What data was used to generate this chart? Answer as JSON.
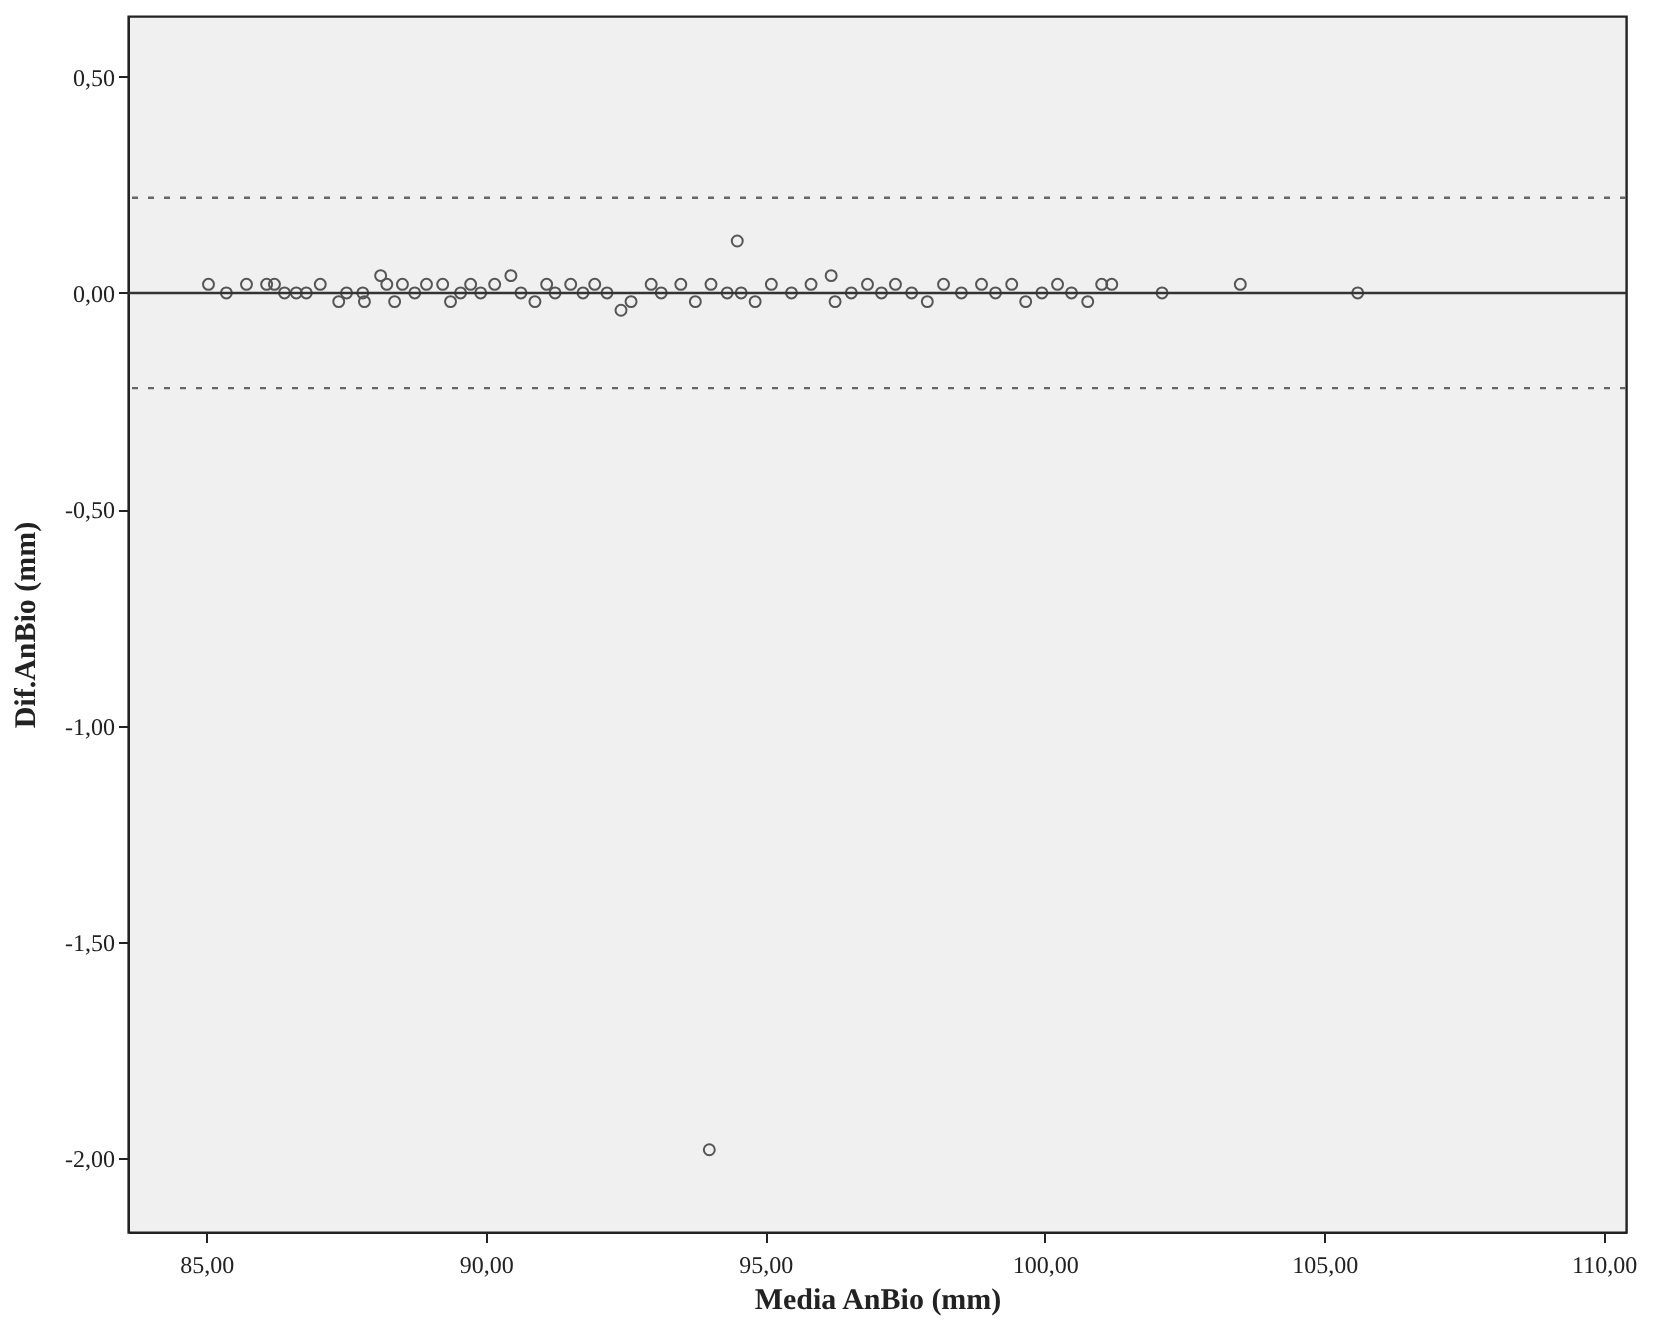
{
  "chart_data": {
    "type": "scatter",
    "xlabel": "Media AnBio (mm)",
    "ylabel": "Dif.AnBio (mm)",
    "x": [
      85.04,
      85.36,
      85.72,
      86.08,
      86.22,
      86.4,
      86.61,
      86.79,
      87.04,
      87.37,
      87.51,
      87.8,
      87.83,
      88.12,
      88.23,
      88.37,
      88.51,
      88.73,
      88.94,
      89.23,
      89.37,
      89.55,
      89.73,
      89.91,
      90.16,
      90.45,
      90.63,
      90.88,
      91.09,
      91.24,
      91.52,
      91.74,
      91.95,
      92.17,
      92.42,
      92.6,
      92.96,
      93.14,
      93.49,
      93.75,
      94.03,
      94.32,
      94.57,
      94.82,
      95.11,
      95.47,
      95.82,
      96.18,
      96.25,
      96.54,
      96.83,
      97.08,
      97.33,
      97.62,
      97.9,
      98.19,
      98.51,
      98.87,
      99.12,
      99.41,
      99.66,
      99.95,
      100.23,
      100.48,
      100.77,
      101.02,
      101.2,
      102.1,
      103.5,
      105.6,
      94.5,
      94.0
    ],
    "values": [
      0.02,
      0,
      0.02,
      0.02,
      0.02,
      0,
      0,
      0,
      0.02,
      -0.02,
      0,
      0,
      -0.02,
      0.04,
      0.02,
      -0.02,
      0.02,
      0,
      0.02,
      0.02,
      -0.02,
      0,
      0.02,
      0,
      0.02,
      0.04,
      0,
      -0.02,
      0.02,
      0,
      0.02,
      0,
      0.02,
      0,
      -0.04,
      -0.02,
      0.02,
      0,
      0.02,
      -0.02,
      0.02,
      0,
      0,
      -0.02,
      0.02,
      0,
      0.02,
      0.04,
      -0.02,
      0,
      0.02,
      0,
      0.02,
      0,
      -0.02,
      0.02,
      0,
      0.02,
      0,
      0.02,
      -0.02,
      0,
      0.02,
      0,
      -0.02,
      0.02,
      0.02,
      0,
      0.02,
      0,
      0.12,
      -1.98
    ],
    "color": "#555555",
    "marker": "circle",
    "grid": false,
    "xlim": [
      83.6,
      110.4
    ],
    "ylim": [
      -2.17,
      0.64
    ],
    "xticks": [
      {
        "value": 85,
        "label": "85,00"
      },
      {
        "value": 90,
        "label": "90,00"
      },
      {
        "value": 95,
        "label": "95,00"
      },
      {
        "value": 100,
        "label": "100,00"
      },
      {
        "value": 105,
        "label": "105,00"
      },
      {
        "value": 110,
        "label": "110,00"
      }
    ],
    "yticks": [
      {
        "value": 0.5,
        "label": "0,50"
      },
      {
        "value": 0,
        "label": "0,00"
      },
      {
        "value": -0.5,
        "label": "-0,50"
      },
      {
        "value": -1,
        "label": "-1,00"
      },
      {
        "value": -1.5,
        "label": "-1,50"
      },
      {
        "value": -2,
        "label": "-2,00"
      }
    ],
    "ref_lines": [
      {
        "axis": "y",
        "value": 0,
        "color": "#333333",
        "line_style": "solid"
      },
      {
        "axis": "y",
        "value": 0.22,
        "color": "#666666",
        "line_style": "dashed"
      },
      {
        "axis": "y",
        "value": -0.22,
        "color": "#666666",
        "line_style": "dashed"
      }
    ]
  }
}
